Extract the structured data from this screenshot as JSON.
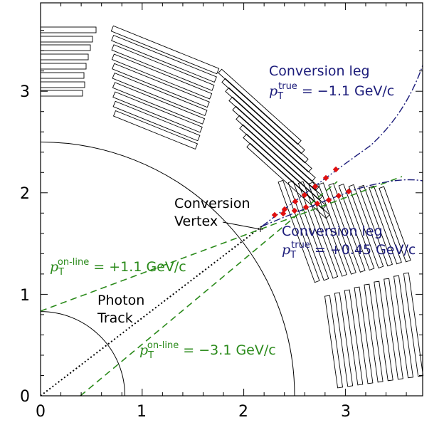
{
  "axes": {
    "x_ticks": [
      "0",
      "1",
      "2",
      "3"
    ],
    "y_ticks": [
      "0",
      "1",
      "2",
      "3"
    ],
    "xlim": [
      0,
      3.8
    ],
    "ylim": [
      0,
      3.7
    ]
  },
  "labels": {
    "conv_leg_top": {
      "title": "Conversion leg",
      "p": "p",
      "sub": "T",
      "sup": "true",
      "value": " = −1.1 GeV/c"
    },
    "conv_leg_bottom": {
      "title": "Conversion leg",
      "p": "p",
      "sub": "T",
      "sup": "true",
      "value": " = +0.45 GeV/c"
    },
    "online_top": {
      "p": "p",
      "sub": "T",
      "sup": "on-line",
      "value": " = +1.1 GeV/c"
    },
    "online_bottom": {
      "p": "p",
      "sub": "T",
      "sup": "on-line",
      "value": " = −3.1 GeV/c"
    },
    "conversion_vertex": [
      "Conversion",
      "Vertex"
    ],
    "photon_track": [
      "Photon",
      "Track"
    ]
  },
  "colors": {
    "blue": "#1b1b7a",
    "green": "#2a8a1a",
    "hit_red": "#e01010",
    "black": "#000000"
  },
  "geometry_data": {
    "inner_arc_radius": 0.83,
    "outer_arc_radius": 2.5,
    "conversion_vertex": [
      2.18,
      1.65
    ]
  }
}
